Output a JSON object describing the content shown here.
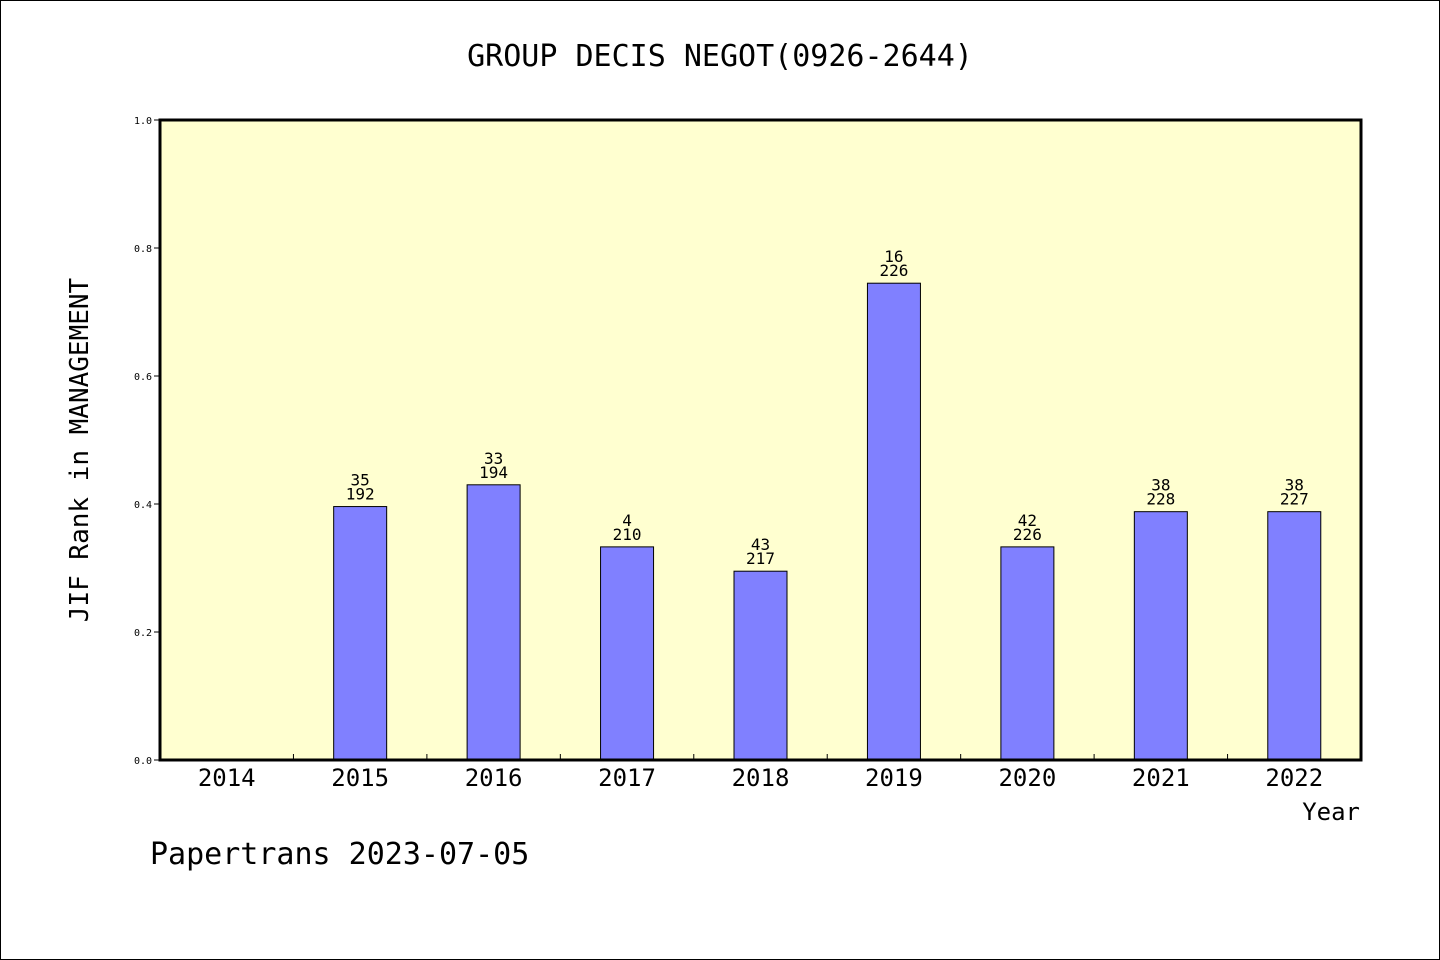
{
  "chart_data": {
    "type": "bar",
    "title": "GROUP DECIS NEGOT(0926-2644)",
    "xlabel": "Year",
    "ylabel": "JIF Rank in MANAGEMENT",
    "ylim": [
      0,
      1.0
    ],
    "yticks": [
      "0.0",
      "0.2",
      "0.4",
      "0.6",
      "0.8",
      "1.0"
    ],
    "categories": [
      "2014",
      "2015",
      "2016",
      "2017",
      "2018",
      "2019",
      "2020",
      "2021",
      "2022"
    ],
    "series": [
      {
        "values": [
          null,
          0.396,
          0.43,
          0.333,
          0.295,
          0.745,
          0.333,
          0.388,
          0.388
        ],
        "rank_labels": [
          "",
          "35",
          "33",
          "4",
          "43",
          "16",
          "42",
          "38",
          "38"
        ],
        "total_labels": [
          "",
          "192",
          "194",
          "210",
          "217",
          "226",
          "226",
          "228",
          "227"
        ]
      }
    ],
    "grid": false,
    "colors": {
      "bar": "#8080ff",
      "plot_background": "#ffffd0",
      "axis": "#000000"
    }
  },
  "footer": {
    "text": "Papertrans 2023-07-05"
  }
}
